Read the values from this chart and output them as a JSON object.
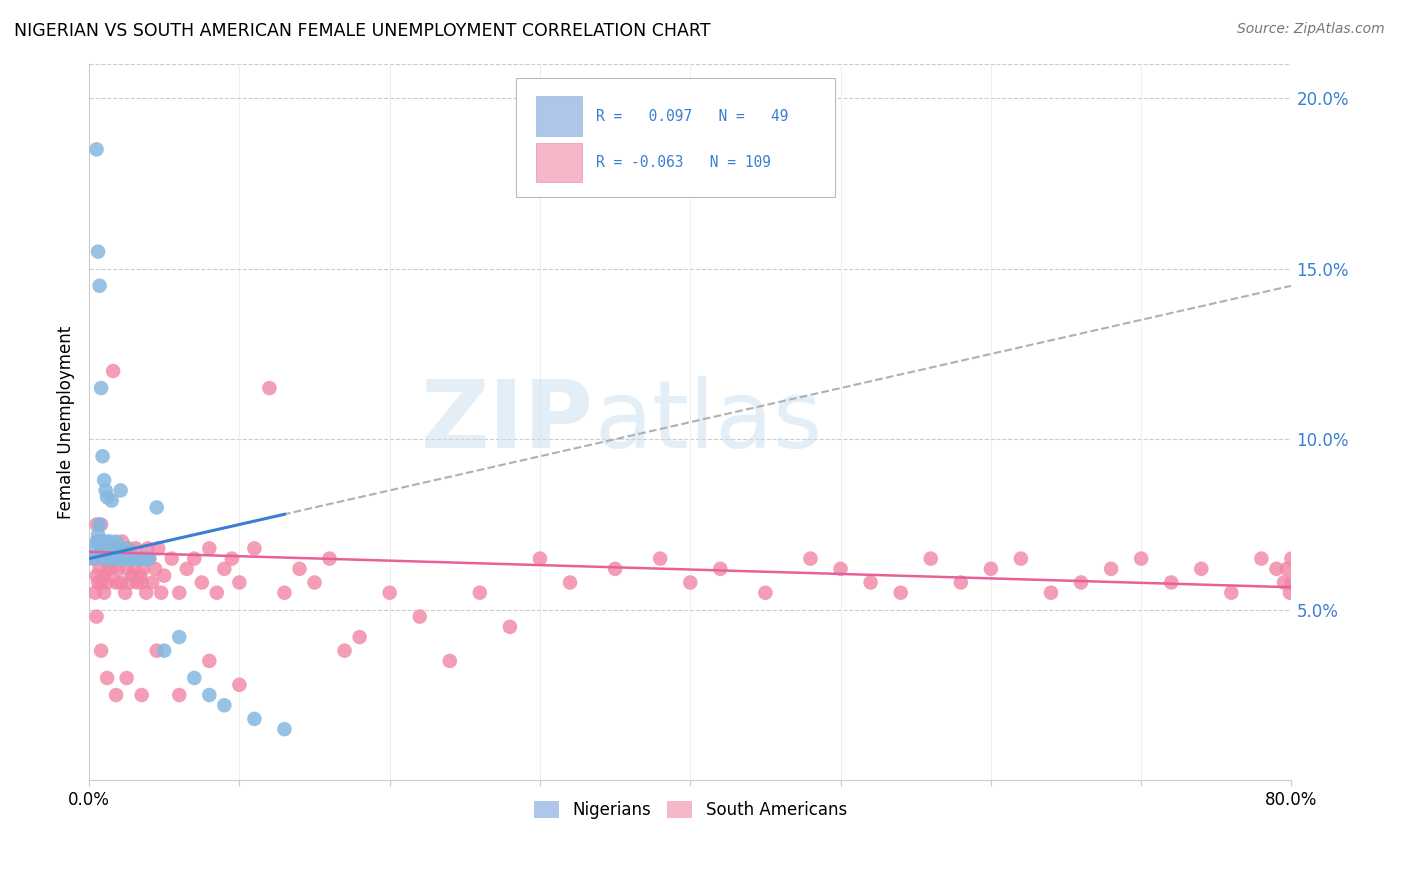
{
  "title": "NIGERIAN VS SOUTH AMERICAN FEMALE UNEMPLOYMENT CORRELATION CHART",
  "source": "Source: ZipAtlas.com",
  "ylabel": "Female Unemployment",
  "right_yticks": [
    "20.0%",
    "15.0%",
    "10.0%",
    "5.0%"
  ],
  "right_ytick_vals": [
    0.2,
    0.15,
    0.1,
    0.05
  ],
  "nigerian_color": "#85b8e0",
  "sa_color": "#f285a5",
  "nigerian_trend_color": "#3a7fd4",
  "sa_trend_color": "#e8609a",
  "dashed_trend_color": "#b0b0b0",
  "watermark": "ZIPatlas",
  "watermark_color": "#c8dff0",
  "nigerian_R": 0.097,
  "nigerian_N": 49,
  "sa_R": -0.063,
  "sa_N": 109,
  "xmin": 0.0,
  "xmax": 0.8,
  "ymin": 0.0,
  "ymax": 0.21,
  "legend_box_color": "#aec6e8",
  "legend_box_color2": "#f4b8c8",
  "legend_text_color": "#3a7fd4",
  "nigerian_x": [
    0.003,
    0.004,
    0.005,
    0.005,
    0.006,
    0.006,
    0.007,
    0.007,
    0.008,
    0.008,
    0.009,
    0.009,
    0.01,
    0.01,
    0.011,
    0.011,
    0.012,
    0.012,
    0.013,
    0.014,
    0.015,
    0.015,
    0.016,
    0.017,
    0.018,
    0.019,
    0.02,
    0.021,
    0.022,
    0.023,
    0.024,
    0.025,
    0.026,
    0.027,
    0.028,
    0.03,
    0.032,
    0.034,
    0.036,
    0.038,
    0.04,
    0.045,
    0.05,
    0.06,
    0.07,
    0.08,
    0.09,
    0.11,
    0.13
  ],
  "nigerian_y": [
    0.065,
    0.068,
    0.07,
    0.185,
    0.072,
    0.155,
    0.075,
    0.145,
    0.068,
    0.115,
    0.07,
    0.095,
    0.065,
    0.088,
    0.068,
    0.085,
    0.07,
    0.083,
    0.067,
    0.07,
    0.065,
    0.082,
    0.068,
    0.065,
    0.07,
    0.065,
    0.068,
    0.085,
    0.065,
    0.067,
    0.065,
    0.068,
    0.065,
    0.065,
    0.065,
    0.065,
    0.065,
    0.065,
    0.065,
    0.065,
    0.065,
    0.08,
    0.038,
    0.042,
    0.03,
    0.025,
    0.022,
    0.018,
    0.015
  ],
  "sa_x": [
    0.003,
    0.004,
    0.005,
    0.005,
    0.006,
    0.006,
    0.007,
    0.008,
    0.008,
    0.009,
    0.01,
    0.01,
    0.011,
    0.012,
    0.013,
    0.014,
    0.015,
    0.016,
    0.017,
    0.018,
    0.019,
    0.02,
    0.021,
    0.022,
    0.023,
    0.024,
    0.025,
    0.026,
    0.027,
    0.028,
    0.029,
    0.03,
    0.031,
    0.032,
    0.033,
    0.034,
    0.035,
    0.036,
    0.037,
    0.038,
    0.039,
    0.04,
    0.042,
    0.044,
    0.046,
    0.048,
    0.05,
    0.055,
    0.06,
    0.065,
    0.07,
    0.075,
    0.08,
    0.085,
    0.09,
    0.095,
    0.1,
    0.11,
    0.12,
    0.13,
    0.14,
    0.15,
    0.16,
    0.17,
    0.18,
    0.2,
    0.22,
    0.24,
    0.26,
    0.28,
    0.3,
    0.32,
    0.35,
    0.38,
    0.4,
    0.42,
    0.45,
    0.48,
    0.5,
    0.52,
    0.54,
    0.56,
    0.58,
    0.6,
    0.62,
    0.64,
    0.66,
    0.68,
    0.7,
    0.72,
    0.74,
    0.76,
    0.78,
    0.79,
    0.795,
    0.797,
    0.799,
    0.8,
    0.8,
    0.005,
    0.008,
    0.012,
    0.018,
    0.025,
    0.035,
    0.045,
    0.06,
    0.08,
    0.1
  ],
  "sa_y": [
    0.065,
    0.055,
    0.06,
    0.075,
    0.058,
    0.07,
    0.062,
    0.058,
    0.075,
    0.065,
    0.06,
    0.055,
    0.068,
    0.058,
    0.062,
    0.068,
    0.062,
    0.12,
    0.065,
    0.058,
    0.062,
    0.065,
    0.058,
    0.07,
    0.065,
    0.055,
    0.062,
    0.068,
    0.058,
    0.065,
    0.06,
    0.062,
    0.068,
    0.058,
    0.065,
    0.06,
    0.058,
    0.062,
    0.065,
    0.055,
    0.068,
    0.065,
    0.058,
    0.062,
    0.068,
    0.055,
    0.06,
    0.065,
    0.055,
    0.062,
    0.065,
    0.058,
    0.068,
    0.055,
    0.062,
    0.065,
    0.058,
    0.068,
    0.115,
    0.055,
    0.062,
    0.058,
    0.065,
    0.038,
    0.042,
    0.055,
    0.048,
    0.035,
    0.055,
    0.045,
    0.065,
    0.058,
    0.062,
    0.065,
    0.058,
    0.062,
    0.055,
    0.065,
    0.062,
    0.058,
    0.055,
    0.065,
    0.058,
    0.062,
    0.065,
    0.055,
    0.058,
    0.062,
    0.065,
    0.058,
    0.062,
    0.055,
    0.065,
    0.062,
    0.058,
    0.062,
    0.055,
    0.065,
    0.058,
    0.048,
    0.038,
    0.03,
    0.025,
    0.03,
    0.025,
    0.038,
    0.025,
    0.035,
    0.028
  ]
}
